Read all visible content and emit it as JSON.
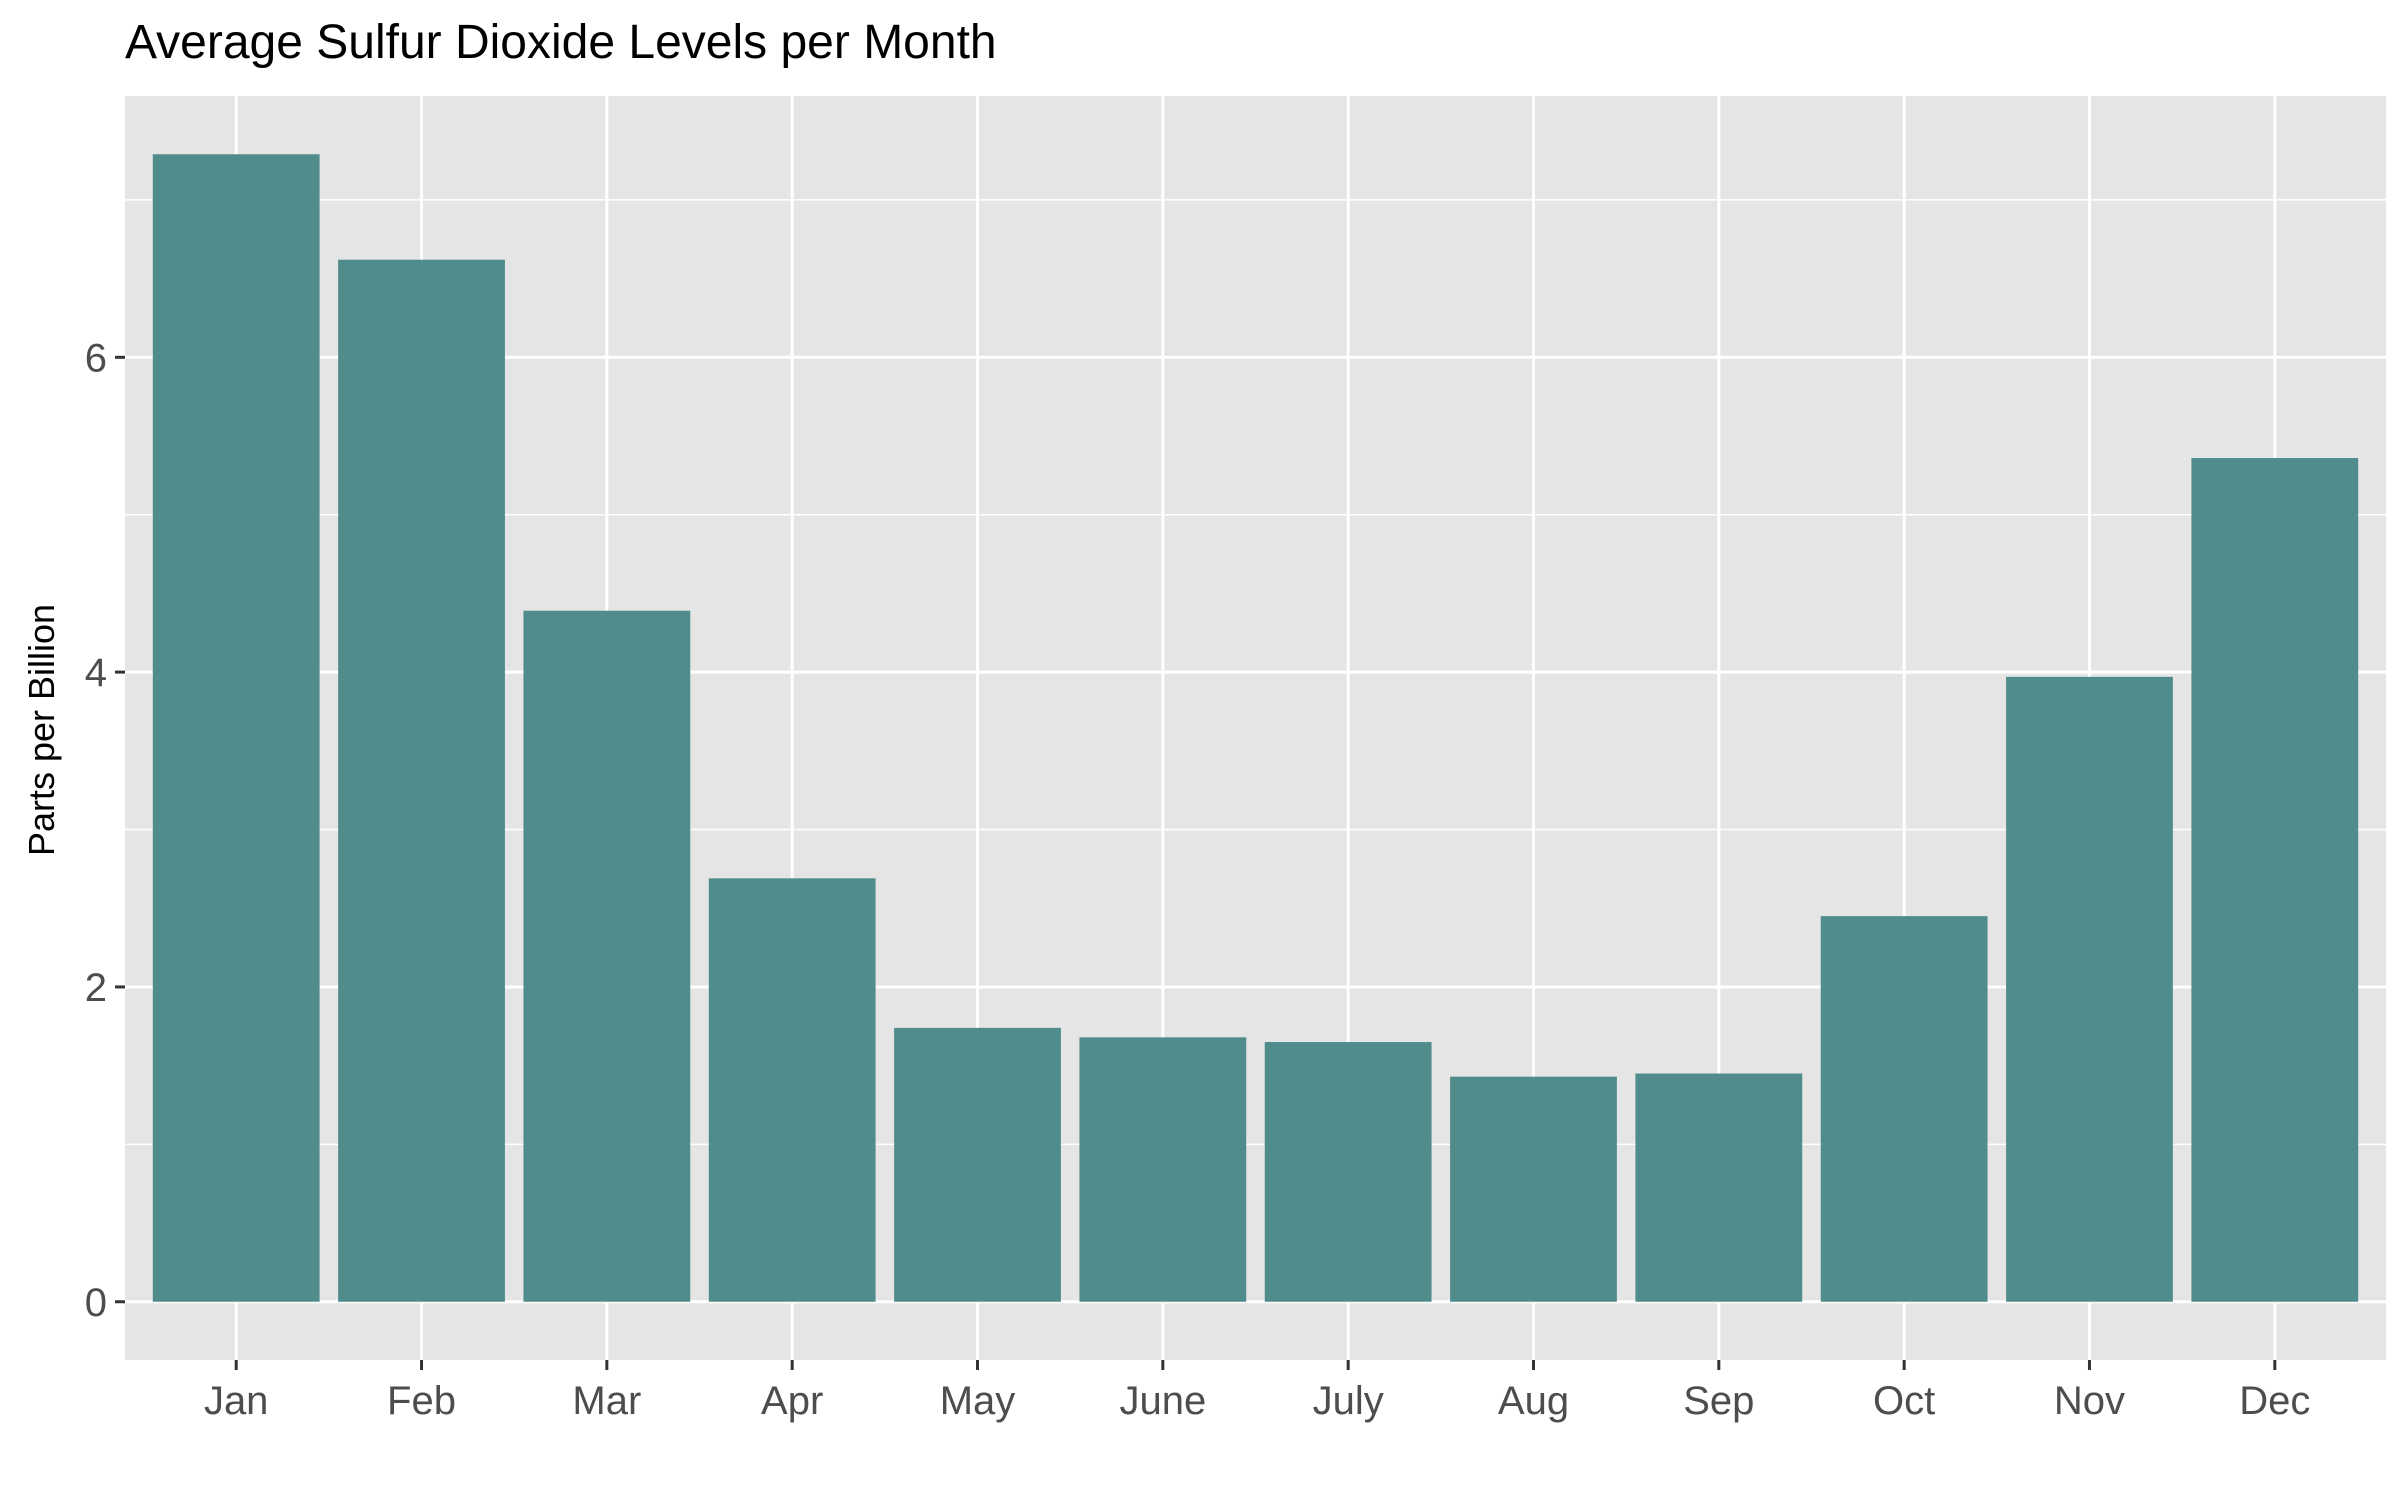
{
  "chart_data": {
    "type": "bar",
    "title": "Average Sulfur Dioxide Levels per Month",
    "xlabel": "",
    "ylabel": "Parts per Billion",
    "categories": [
      "Jan",
      "Feb",
      "Mar",
      "Apr",
      "May",
      "June",
      "July",
      "Aug",
      "Sep",
      "Oct",
      "Nov",
      "Dec"
    ],
    "values": [
      7.29,
      6.62,
      4.39,
      2.69,
      1.74,
      1.68,
      1.65,
      1.43,
      1.45,
      2.45,
      3.97,
      5.36
    ],
    "ylim": [
      -0.37,
      7.66
    ],
    "yticks": [
      0,
      2,
      4,
      6
    ],
    "grid": true,
    "legend": "none",
    "colors": {
      "bar": "#508C8C",
      "panel": "#E5E5E5",
      "grid": "#FFFFFF",
      "text": "#4D4D4D",
      "title": "#000000"
    }
  }
}
